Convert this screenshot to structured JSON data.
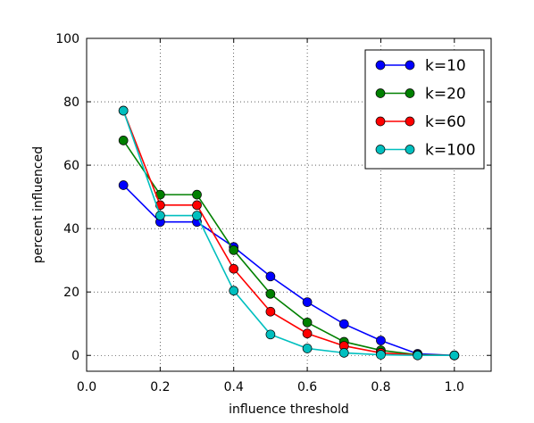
{
  "chart_data": {
    "type": "line",
    "title": "",
    "xlabel": "influence threshold",
    "ylabel": "percent influenced",
    "xlim": [
      0.0,
      1.1
    ],
    "ylim": [
      -5,
      100
    ],
    "xticks": [
      0.0,
      0.2,
      0.4,
      0.6,
      0.8,
      1.0
    ],
    "xtick_labels": [
      "0.0",
      "0.2",
      "0.4",
      "0.6",
      "0.8",
      "1.0"
    ],
    "yticks": [
      0,
      20,
      40,
      60,
      80,
      100
    ],
    "ytick_labels": [
      "0",
      "20",
      "40",
      "60",
      "80",
      "100"
    ],
    "grid": true,
    "legend_position": "top-right",
    "x": [
      0.1,
      0.2,
      0.3,
      0.4,
      0.5,
      0.6,
      0.7,
      0.8,
      0.9,
      1.0
    ],
    "series": [
      {
        "name": "k=10",
        "color": "#0000ff",
        "values": [
          53.7,
          42.1,
          42.1,
          34.2,
          24.9,
          16.8,
          9.9,
          4.7,
          0.5,
          0.0
        ]
      },
      {
        "name": "k=20",
        "color": "#008000",
        "values": [
          67.8,
          50.7,
          50.7,
          33.2,
          19.4,
          10.4,
          4.3,
          1.6,
          0.2,
          0.0
        ]
      },
      {
        "name": "k=60",
        "color": "#ff0000",
        "values": [
          77.2,
          47.4,
          47.4,
          27.3,
          13.8,
          6.9,
          3.0,
          0.8,
          0.1,
          0.0
        ]
      },
      {
        "name": "k=100",
        "color": "#00bfbf",
        "values": [
          77.2,
          44.1,
          44.1,
          20.4,
          6.6,
          2.2,
          0.8,
          0.2,
          0.0,
          0.0
        ]
      }
    ]
  }
}
